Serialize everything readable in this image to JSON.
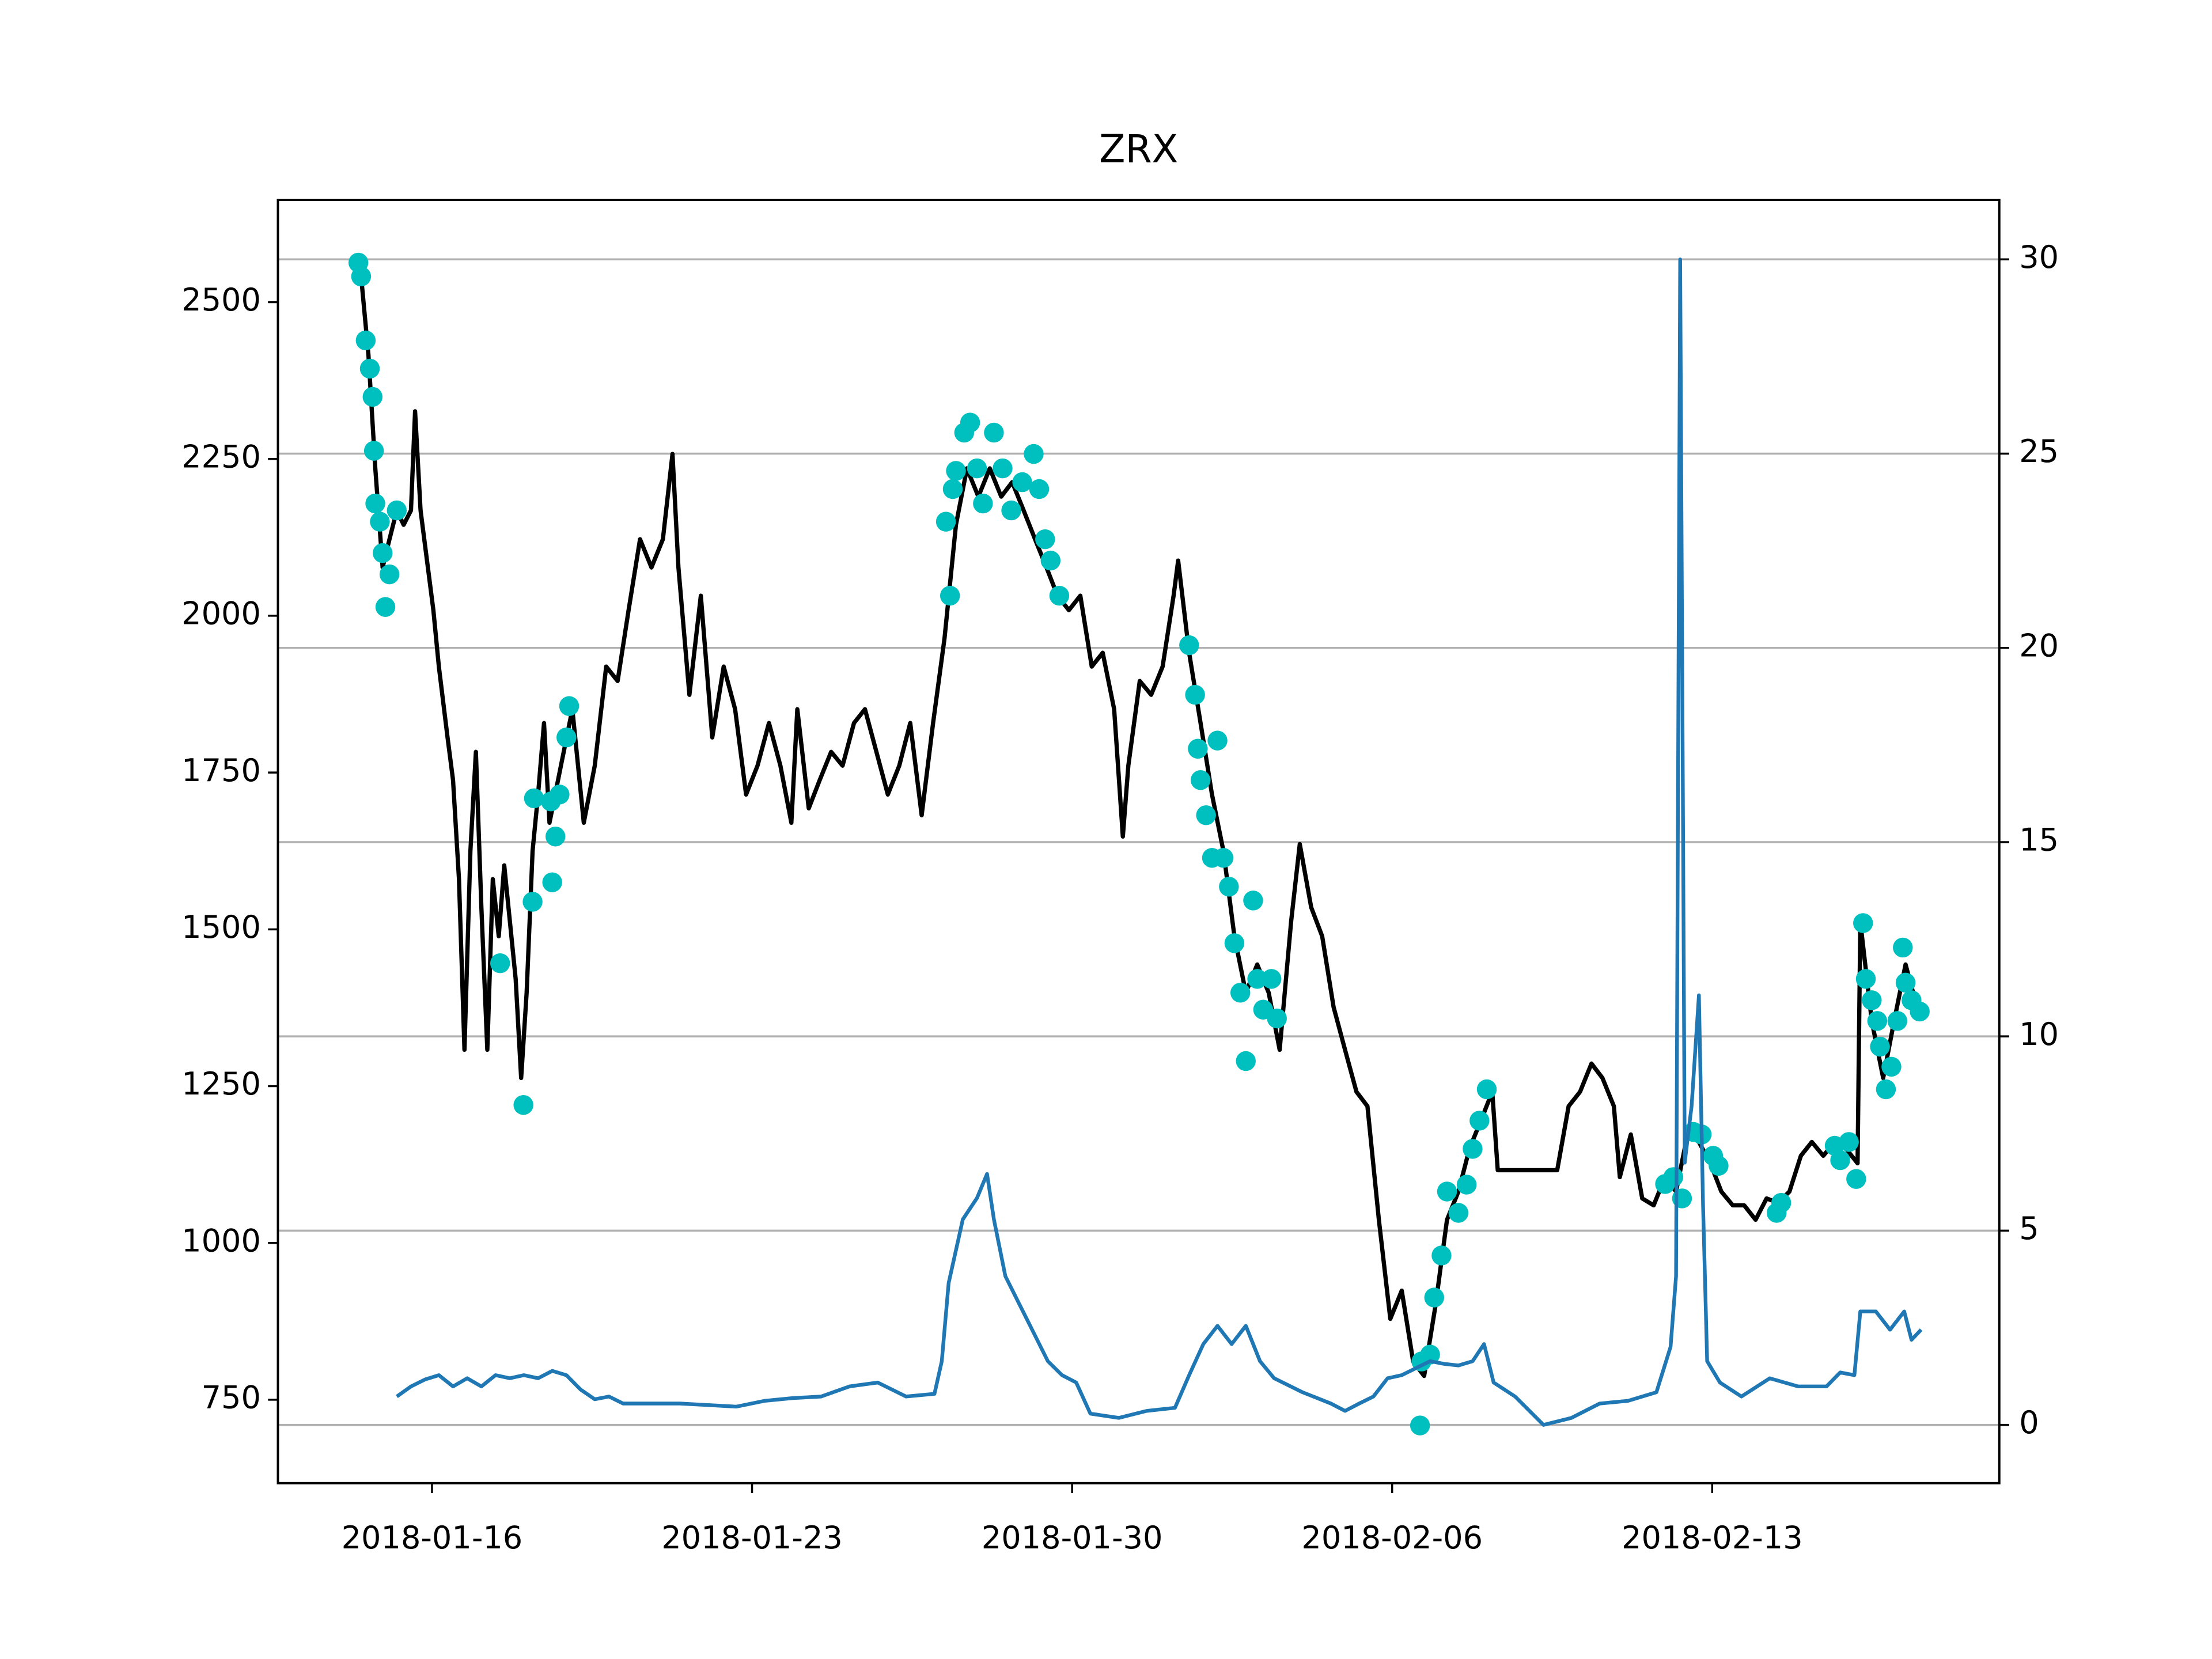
{
  "chart_data": {
    "type": "line",
    "title": "ZRX",
    "xlim": [
      12.63,
      50.28
    ],
    "xticks": [
      {
        "value": 16,
        "label": "2018-01-16"
      },
      {
        "value": 23,
        "label": "2018-01-23"
      },
      {
        "value": 30,
        "label": "2018-01-30"
      },
      {
        "value": 37,
        "label": "2018-02-06"
      },
      {
        "value": 44,
        "label": "2018-02-13"
      }
    ],
    "ylim": [
      617,
      2663
    ],
    "yticks": [
      750,
      1000,
      1250,
      1500,
      1750,
      2000,
      2250,
      2500
    ],
    "y2lim": [
      -1.5,
      31.53
    ],
    "y2ticks": [
      0,
      5,
      10,
      15,
      20,
      25,
      30
    ],
    "grid": "y2",
    "series": [
      {
        "type": "line",
        "axis": "y",
        "color": "#000000",
        "x": [
          14.3,
          14.45,
          14.61,
          14.76,
          14.92,
          15.07,
          15.23,
          15.38,
          15.54,
          15.63,
          15.75,
          15.91,
          16.03,
          16.15,
          16.34,
          16.46,
          16.59,
          16.71,
          16.84,
          16.96,
          17.08,
          17.21,
          17.33,
          17.46,
          17.58,
          17.83,
          17.95,
          18.07,
          18.2,
          18.32,
          18.45,
          18.57,
          18.82,
          19.07,
          19.32,
          19.56,
          19.81,
          20.06,
          20.3,
          20.55,
          20.8,
          21.05,
          21.26,
          21.39,
          21.63,
          21.88,
          22.13,
          22.38,
          22.63,
          22.87,
          23.12,
          23.37,
          23.62,
          23.86,
          23.99,
          24.24,
          24.48,
          24.73,
          24.98,
          25.23,
          25.47,
          25.72,
          25.97,
          26.22,
          26.46,
          26.71,
          26.96,
          27.21,
          27.46,
          27.7,
          27.95,
          28.2,
          28.45,
          28.69,
          28.94,
          29.19,
          29.44,
          29.68,
          29.93,
          30.18,
          30.43,
          30.67,
          30.92,
          31.11,
          31.23,
          31.48,
          31.73,
          31.98,
          32.22,
          32.32,
          32.56,
          32.81,
          33.06,
          33.31,
          33.55,
          33.8,
          34.05,
          34.3,
          34.54,
          34.79,
          34.98,
          35.23,
          35.47,
          35.72,
          35.97,
          36.22,
          36.46,
          36.71,
          36.96,
          37.21,
          37.46,
          37.7,
          37.95,
          38.2,
          38.45,
          38.69,
          38.94,
          39.19,
          39.31,
          40.61,
          40.86,
          41.11,
          41.36,
          41.6,
          41.85,
          41.98,
          42.22,
          42.47,
          42.72,
          42.97,
          43.21,
          43.46,
          43.71,
          43.96,
          44.2,
          44.45,
          44.7,
          44.95,
          45.19,
          45.44,
          45.69,
          45.94,
          46.18,
          46.43,
          46.68,
          46.93,
          47.18,
          47.24,
          47.49,
          47.74,
          47.98,
          48.23,
          48.48
        ],
        "values": [
          2563,
          2541,
          2416,
          2235,
          2077,
          2122,
          2168,
          2145,
          2168,
          2326,
          2168,
          2077,
          2009,
          1919,
          1806,
          1738,
          1580,
          1308,
          1625,
          1783,
          1535,
          1308,
          1580,
          1489,
          1602,
          1421,
          1263,
          1399,
          1625,
          1715,
          1829,
          1670,
          1761,
          1851,
          1670,
          1761,
          1919,
          1896,
          2009,
          2122,
          2077,
          2122,
          2258,
          2077,
          1874,
          2032,
          1806,
          1919,
          1851,
          1715,
          1761,
          1829,
          1761,
          1670,
          1851,
          1693,
          1738,
          1783,
          1761,
          1829,
          1851,
          1783,
          1715,
          1761,
          1829,
          1682,
          1829,
          1964,
          2145,
          2235,
          2190,
          2235,
          2190,
          2213,
          2168,
          2122,
          2077,
          2032,
          2009,
          2032,
          1919,
          1941,
          1851,
          1648,
          1761,
          1896,
          1874,
          1919,
          2032,
          2088,
          1941,
          1829,
          1715,
          1625,
          1489,
          1399,
          1444,
          1399,
          1308,
          1512,
          1636,
          1535,
          1489,
          1376,
          1308,
          1241,
          1218,
          1037,
          879,
          924,
          811,
          788,
          901,
          1037,
          1082,
          1150,
          1195,
          1241,
          1116,
          1116,
          1218,
          1241,
          1286,
          1263,
          1218,
          1105,
          1173,
          1071,
          1060,
          1105,
          1082,
          1173,
          1161,
          1127,
          1082,
          1060,
          1060,
          1037,
          1071,
          1064,
          1082,
          1139,
          1161,
          1139,
          1161,
          1150,
          1127,
          1512,
          1354,
          1263,
          1354,
          1444,
          1376
        ]
      },
      {
        "type": "scatter",
        "axis": "y",
        "color": "#00bfbf",
        "x": [
          14.39,
          14.45,
          14.55,
          14.64,
          14.7,
          14.73,
          14.76,
          14.86,
          14.92,
          14.98,
          15.07,
          15.23,
          17.49,
          18.0,
          18.2,
          18.23,
          18.6,
          18.63,
          18.7,
          18.79,
          18.94,
          19.0,
          27.24,
          27.33,
          27.39,
          27.46,
          27.64,
          27.77,
          27.92,
          28.05,
          28.29,
          28.48,
          28.67,
          28.91,
          29.16,
          29.28,
          29.41,
          29.53,
          29.72,
          32.56,
          32.69,
          32.75,
          32.81,
          32.93,
          33.06,
          33.18,
          33.31,
          33.43,
          33.55,
          33.68,
          33.8,
          33.96,
          34.05,
          34.18,
          34.36,
          34.48,
          37.61,
          37.64,
          37.83,
          37.92,
          38.08,
          38.2,
          38.45,
          38.63,
          38.76,
          38.91,
          39.07,
          42.97,
          43.15,
          43.34,
          43.59,
          43.77,
          44.02,
          44.14,
          45.41,
          45.51,
          46.68,
          46.8,
          46.99,
          47.15,
          47.3,
          47.36,
          47.49,
          47.61,
          47.67,
          47.8,
          47.92,
          48.05,
          48.17,
          48.23,
          48.36,
          48.54
        ],
        "values": [
          2563,
          2541,
          2439,
          2394,
          2349,
          2263,
          2179,
          2150,
          2100,
          2014,
          2066,
          2168,
          1446,
          1220,
          1544,
          1709,
          1704,
          1575,
          1648,
          1715,
          1806,
          1856,
          2150,
          2032,
          2202,
          2231,
          2292,
          2308,
          2235,
          2179,
          2292,
          2235,
          2168,
          2213,
          2258,
          2202,
          2122,
          2088,
          2032,
          1953,
          1874,
          1788,
          1738,
          1682,
          1614,
          1801,
          1614,
          1568,
          1478,
          1399,
          1290,
          1546,
          1421,
          1372,
          1421,
          1358,
          709,
          811,
          822,
          913,
          980,
          1082,
          1048,
          1093,
          1150,
          1195,
          1245,
          1094,
          1105,
          1071,
          1177,
          1173,
          1139,
          1123,
          1048,
          1064,
          1155,
          1132,
          1161,
          1102,
          1510,
          1421,
          1387,
          1354,
          1313,
          1245,
          1281,
          1354,
          1471,
          1415,
          1387,
          1369
        ]
      },
      {
        "type": "line",
        "axis": "y2",
        "color": "#1f77b4",
        "x": [
          15.23,
          15.54,
          15.85,
          16.15,
          16.46,
          16.77,
          17.08,
          17.39,
          17.7,
          18.01,
          18.32,
          18.63,
          18.94,
          19.25,
          19.56,
          19.87,
          20.18,
          20.8,
          21.42,
          22.04,
          22.66,
          23.28,
          23.89,
          24.51,
          25.13,
          25.75,
          26.37,
          26.99,
          27.15,
          27.3,
          27.61,
          27.92,
          28.14,
          28.29,
          28.54,
          28.85,
          29.16,
          29.47,
          29.78,
          30.09,
          30.4,
          31.02,
          31.63,
          32.25,
          32.56,
          32.87,
          33.18,
          33.49,
          33.8,
          34.11,
          34.42,
          35.04,
          35.66,
          35.97,
          36.28,
          36.59,
          36.9,
          37.21,
          37.52,
          37.83,
          38.14,
          38.45,
          38.76,
          39.01,
          39.22,
          39.69,
          40.31,
          40.92,
          41.54,
          42.16,
          42.78,
          43.09,
          43.21,
          43.3,
          43.4,
          43.55,
          43.71,
          43.8,
          43.89,
          44.17,
          44.64,
          45.26,
          45.88,
          46.5,
          46.8,
          47.11,
          47.24,
          47.58,
          47.89,
          48.2,
          48.36,
          48.57
        ],
        "values": [
          0.73,
          0.99,
          1.17,
          1.28,
          0.99,
          1.2,
          0.99,
          1.28,
          1.2,
          1.28,
          1.2,
          1.39,
          1.28,
          0.91,
          0.66,
          0.73,
          0.55,
          0.55,
          0.55,
          0.51,
          0.47,
          0.62,
          0.69,
          0.73,
          0.99,
          1.09,
          0.73,
          0.8,
          1.64,
          3.65,
          5.29,
          5.84,
          6.46,
          5.29,
          3.83,
          3.1,
          2.37,
          1.64,
          1.28,
          1.09,
          0.29,
          0.18,
          0.36,
          0.44,
          1.28,
          2.08,
          2.55,
          2.08,
          2.55,
          1.64,
          1.2,
          0.84,
          0.55,
          0.36,
          0.55,
          0.73,
          1.2,
          1.28,
          1.46,
          1.64,
          1.57,
          1.53,
          1.64,
          2.08,
          1.09,
          0.73,
          0.0,
          0.18,
          0.55,
          0.62,
          0.84,
          2.01,
          3.83,
          30.0,
          6.75,
          8.21,
          11.06,
          5.66,
          1.64,
          1.09,
          0.73,
          1.2,
          0.99,
          0.99,
          1.35,
          1.28,
          2.92,
          2.92,
          2.45,
          2.92,
          2.19,
          2.45
        ]
      }
    ]
  }
}
